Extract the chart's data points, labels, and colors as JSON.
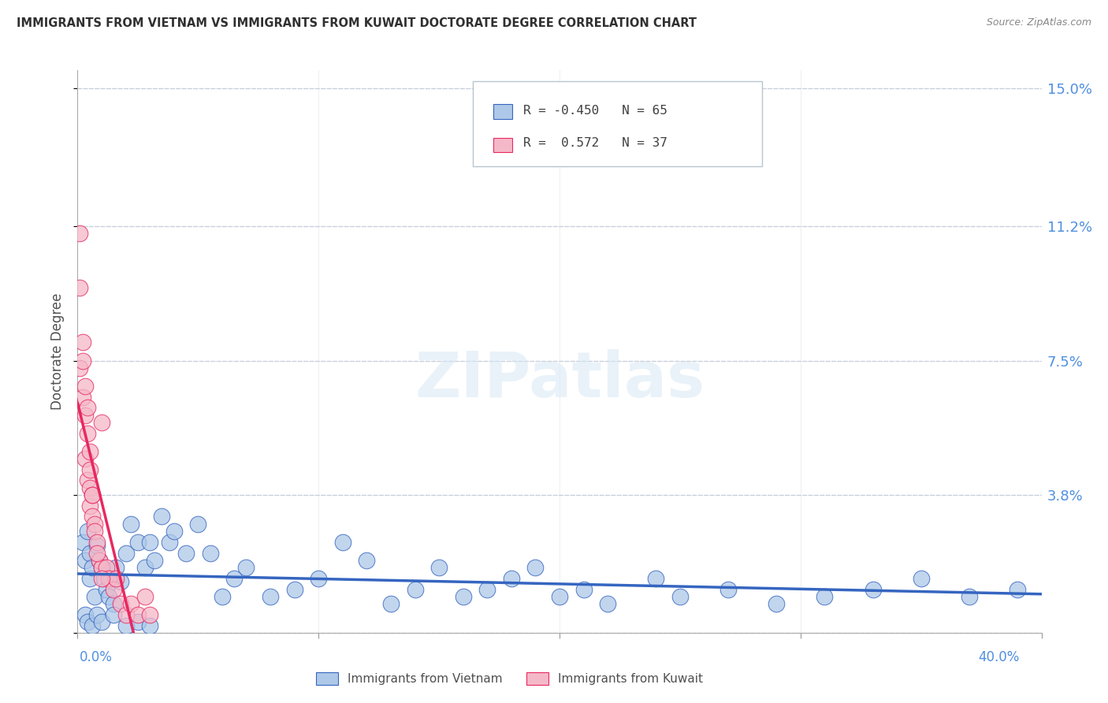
{
  "title": "IMMIGRANTS FROM VIETNAM VS IMMIGRANTS FROM KUWAIT DOCTORATE DEGREE CORRELATION CHART",
  "source": "Source: ZipAtlas.com",
  "ylabel": "Doctorate Degree",
  "yticks": [
    0.0,
    0.038,
    0.075,
    0.112,
    0.15
  ],
  "ytick_labels": [
    "",
    "3.8%",
    "7.5%",
    "11.2%",
    "15.0%"
  ],
  "xlim": [
    0.0,
    0.4
  ],
  "ylim": [
    0.0,
    0.155
  ],
  "watermark": "ZIPatlas",
  "color_vietnam": "#adc8e8",
  "color_kuwait": "#f5b8c8",
  "color_trendline_vietnam": "#3565c0",
  "color_trendline_kuwait": "#e82860",
  "color_axis_labels": "#5090e0",
  "color_grid": "#c8d0dc",
  "title_color": "#303030",
  "vietnam_x": [
    0.002,
    0.003,
    0.004,
    0.005,
    0.005,
    0.006,
    0.007,
    0.008,
    0.009,
    0.01,
    0.011,
    0.012,
    0.013,
    0.014,
    0.015,
    0.016,
    0.018,
    0.02,
    0.022,
    0.025,
    0.028,
    0.03,
    0.032,
    0.035,
    0.038,
    0.04,
    0.045,
    0.05,
    0.055,
    0.06,
    0.065,
    0.07,
    0.08,
    0.09,
    0.1,
    0.11,
    0.12,
    0.13,
    0.14,
    0.15,
    0.16,
    0.17,
    0.18,
    0.19,
    0.2,
    0.21,
    0.22,
    0.24,
    0.25,
    0.27,
    0.29,
    0.31,
    0.33,
    0.35,
    0.37,
    0.39,
    0.003,
    0.004,
    0.006,
    0.008,
    0.01,
    0.015,
    0.02,
    0.025,
    0.03
  ],
  "vietnam_y": [
    0.025,
    0.02,
    0.028,
    0.015,
    0.022,
    0.018,
    0.01,
    0.024,
    0.02,
    0.018,
    0.015,
    0.012,
    0.01,
    0.015,
    0.008,
    0.018,
    0.014,
    0.022,
    0.03,
    0.025,
    0.018,
    0.025,
    0.02,
    0.032,
    0.025,
    0.028,
    0.022,
    0.03,
    0.022,
    0.01,
    0.015,
    0.018,
    0.01,
    0.012,
    0.015,
    0.025,
    0.02,
    0.008,
    0.012,
    0.018,
    0.01,
    0.012,
    0.015,
    0.018,
    0.01,
    0.012,
    0.008,
    0.015,
    0.01,
    0.012,
    0.008,
    0.01,
    0.012,
    0.015,
    0.01,
    0.012,
    0.005,
    0.003,
    0.002,
    0.005,
    0.003,
    0.005,
    0.002,
    0.003,
    0.002
  ],
  "kuwait_x": [
    0.001,
    0.001,
    0.002,
    0.002,
    0.003,
    0.003,
    0.004,
    0.004,
    0.005,
    0.005,
    0.005,
    0.006,
    0.006,
    0.007,
    0.007,
    0.008,
    0.009,
    0.01,
    0.01,
    0.012,
    0.013,
    0.015,
    0.016,
    0.018,
    0.02,
    0.022,
    0.025,
    0.028,
    0.03,
    0.001,
    0.002,
    0.003,
    0.004,
    0.005,
    0.006,
    0.008,
    0.01
  ],
  "kuwait_y": [
    0.095,
    0.11,
    0.08,
    0.065,
    0.06,
    0.048,
    0.055,
    0.042,
    0.05,
    0.04,
    0.035,
    0.038,
    0.032,
    0.03,
    0.028,
    0.025,
    0.02,
    0.058,
    0.018,
    0.018,
    0.015,
    0.012,
    0.015,
    0.008,
    0.005,
    0.008,
    0.005,
    0.01,
    0.005,
    0.073,
    0.075,
    0.068,
    0.062,
    0.045,
    0.038,
    0.022,
    0.015
  ]
}
